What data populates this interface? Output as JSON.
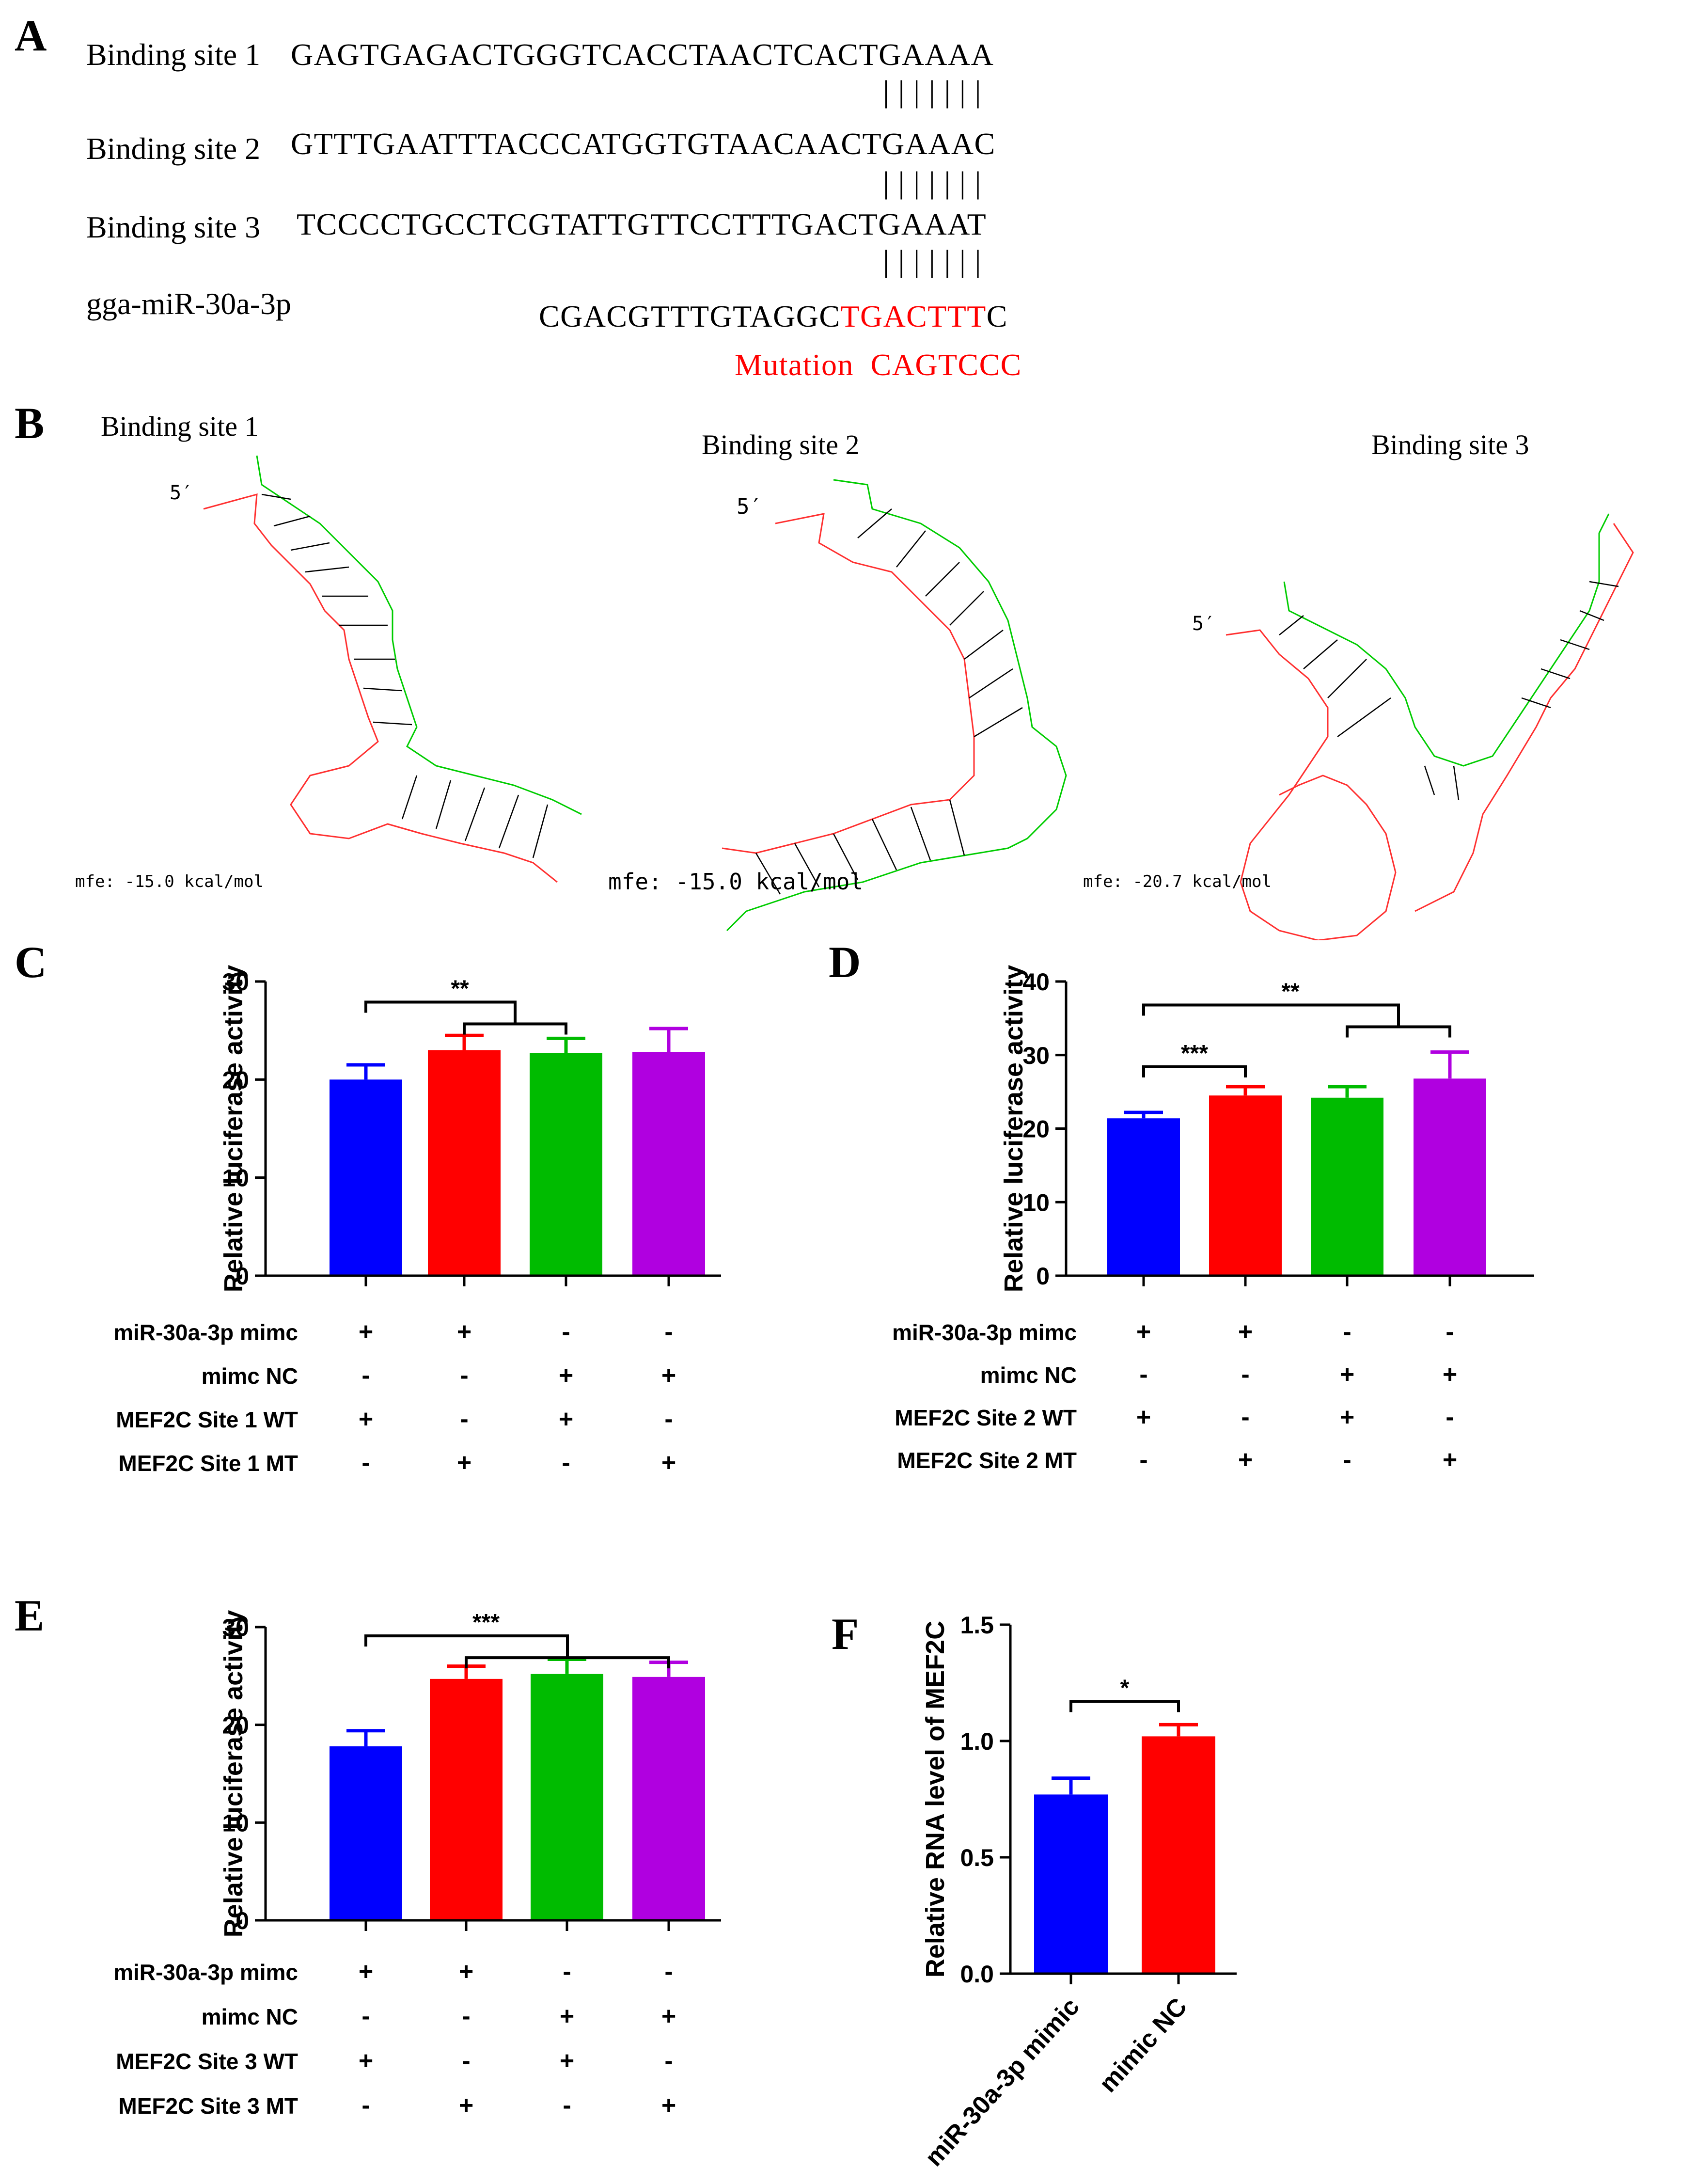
{
  "panels": {
    "a": {
      "letter": "A",
      "rows": [
        {
          "label": "Binding site 1",
          "sequence": "GAGTGAGACTGGGTCACCTAACTCACTGAAAA"
        },
        {
          "label": "Binding site 2",
          "sequence": "GTTTGAATTTACCCATGGTGTAACAACTGAAAC"
        },
        {
          "label": "Binding site 3",
          "sequence": "TCCCCTGCCTCGTATTGTTCCTTTGACTGAAAT"
        }
      ],
      "pairing_marks": "| | | | | | |",
      "mirna_label": "gga-miR-30a-3p",
      "mirna_prefix": "CGACGTTTGTAGGC",
      "mirna_seed": "TGACTTT",
      "mirna_suffix": "C",
      "mutation_label": "Mutation",
      "mutation_seq": "CAGTCCC"
    },
    "b": {
      "letter": "B",
      "structures": [
        {
          "title": "Binding site 1",
          "five_prime": "5′",
          "mfe": "mfe: -15.0 kcal/mol"
        },
        {
          "title": "Binding site 2",
          "five_prime": "5′",
          "mfe": "mfe: -15.0 kcal/mol"
        },
        {
          "title": "Binding site 3",
          "five_prime": "5′",
          "mfe": "mfe: -20.7 kcal/mol"
        }
      ]
    },
    "c": {
      "letter": "C"
    },
    "d": {
      "letter": "D"
    },
    "e": {
      "letter": "E"
    },
    "f": {
      "letter": "F"
    }
  },
  "condition_rows": {
    "c": [
      {
        "label": "miR-30a-3p mimc",
        "signs": [
          "+",
          "+",
          "-",
          "-"
        ]
      },
      {
        "label": "mimc NC",
        "signs": [
          "-",
          "-",
          "+",
          "+"
        ]
      },
      {
        "label": "MEF2C Site 1 WT",
        "signs": [
          "+",
          "-",
          "+",
          "-"
        ]
      },
      {
        "label": "MEF2C Site 1 MT",
        "signs": [
          "-",
          "+",
          "-",
          "+"
        ]
      }
    ],
    "d": [
      {
        "label": "miR-30a-3p mimc",
        "signs": [
          "+",
          "+",
          "-",
          "-"
        ]
      },
      {
        "label": "mimc NC",
        "signs": [
          "-",
          "-",
          "+",
          "+"
        ]
      },
      {
        "label": "MEF2C Site 2 WT",
        "signs": [
          "+",
          "-",
          "+",
          "-"
        ]
      },
      {
        "label": "MEF2C Site 2 MT",
        "signs": [
          "-",
          "+",
          "-",
          "+"
        ]
      }
    ],
    "e": [
      {
        "label": "miR-30a-3p mimc",
        "signs": [
          "+",
          "+",
          "-",
          "-"
        ]
      },
      {
        "label": "mimc NC",
        "signs": [
          "-",
          "-",
          "+",
          "+"
        ]
      },
      {
        "label": "MEF2C Site 3 WT",
        "signs": [
          "+",
          "-",
          "+",
          "-"
        ]
      },
      {
        "label": "MEF2C Site 3 MT",
        "signs": [
          "-",
          "+",
          "-",
          "+"
        ]
      }
    ]
  },
  "chart_data": [
    {
      "id": "C",
      "type": "bar",
      "title": "",
      "xlabel": "",
      "ylabel": "Relative luciferase activity",
      "ylim": [
        0,
        30
      ],
      "yticks": [
        0,
        10,
        20,
        30
      ],
      "values": [
        20.0,
        23.0,
        22.7,
        22.8
      ],
      "errors": [
        1.5,
        1.5,
        1.5,
        2.4
      ],
      "colors": [
        "#0000ff",
        "#ff0000",
        "#00bb00",
        "#b000e0"
      ],
      "significance": [
        {
          "label": "**",
          "from": 0,
          "to": [
            1,
            2
          ],
          "at": 27.9
        }
      ]
    },
    {
      "id": "D",
      "type": "bar",
      "title": "",
      "xlabel": "",
      "ylabel": "Relative luciferase activity",
      "ylim": [
        0,
        40
      ],
      "yticks": [
        0,
        10,
        20,
        30,
        40
      ],
      "values": [
        21.4,
        24.5,
        24.2,
        26.8
      ],
      "errors": [
        0.8,
        1.2,
        1.5,
        3.6
      ],
      "colors": [
        "#0000ff",
        "#ff0000",
        "#00bb00",
        "#b000e0"
      ],
      "significance": [
        {
          "label": "***",
          "from": 0,
          "to": [
            1
          ],
          "at": 28.4
        },
        {
          "label": "**",
          "from": 0,
          "to": [
            2,
            3
          ],
          "at": 36.8
        }
      ]
    },
    {
      "id": "E",
      "type": "bar",
      "title": "",
      "xlabel": "",
      "ylabel": "Relative luciferase activity",
      "ylim": [
        0,
        30
      ],
      "yticks": [
        0,
        10,
        20,
        30
      ],
      "values": [
        17.8,
        24.7,
        25.2,
        24.9
      ],
      "errors": [
        1.6,
        1.3,
        1.5,
        1.5
      ],
      "colors": [
        "#0000ff",
        "#ff0000",
        "#00bb00",
        "#b000e0"
      ],
      "significance": [
        {
          "label": "***",
          "from": 0,
          "to": [
            1,
            3
          ],
          "at": 29.1
        }
      ]
    },
    {
      "id": "F",
      "type": "bar",
      "title": "",
      "xlabel": "",
      "ylabel": "Relative RNA level of MEF2C",
      "categories": [
        "miR-30a-3p mimic",
        "mimic NC"
      ],
      "ylim": [
        0,
        1.5
      ],
      "yticks": [
        0.0,
        0.5,
        1.0,
        1.5
      ],
      "ytick_labels": [
        "0.0",
        "0.5",
        "1.0",
        "1.5"
      ],
      "values": [
        0.77,
        1.02
      ],
      "errors": [
        0.07,
        0.05
      ],
      "colors": [
        "#0000ff",
        "#ff0000"
      ],
      "significance": [
        {
          "label": "*",
          "from": 0,
          "to": [
            1
          ],
          "at": 1.17
        }
      ]
    }
  ]
}
